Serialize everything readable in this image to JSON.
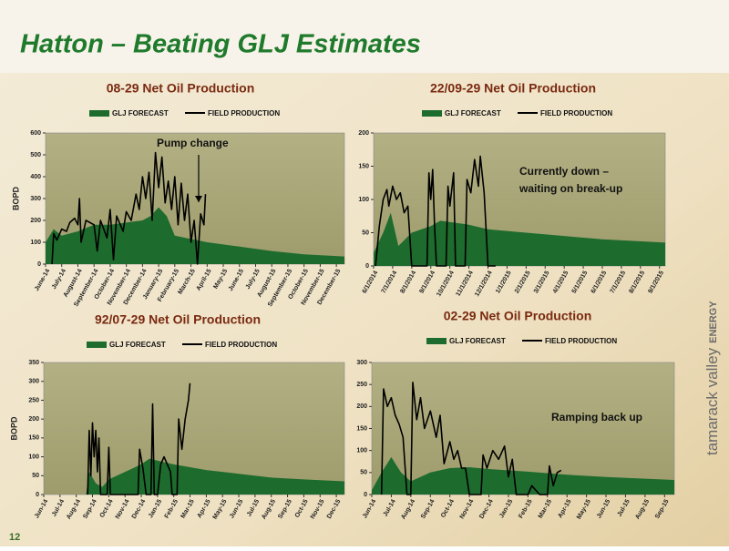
{
  "header": {
    "title": "Hatton – Beating GLJ Estimates"
  },
  "page_number": "12",
  "brand": [
    "tamarack valley",
    "ENERGY"
  ],
  "chart_data": [
    {
      "type": "combo",
      "title": "08-29 Net Oil Production",
      "ylabel": "BOPD",
      "annotation": [
        "Pump change"
      ],
      "ylim": [
        0,
        600
      ],
      "yticks": [
        0,
        100,
        200,
        300,
        400,
        500,
        600
      ],
      "xlim": [
        0,
        18.5
      ],
      "xticks": [
        {
          "value": 0,
          "label": "June-14"
        },
        {
          "value": 1,
          "label": "July-14"
        },
        {
          "value": 2,
          "label": "August-14"
        },
        {
          "value": 3,
          "label": "September-14"
        },
        {
          "value": 4,
          "label": "October-14"
        },
        {
          "value": 5,
          "label": "November-14"
        },
        {
          "value": 6,
          "label": "December-14"
        },
        {
          "value": 7,
          "label": "January-15"
        },
        {
          "value": 8,
          "label": "February-15"
        },
        {
          "value": 9,
          "label": "March-15"
        },
        {
          "value": 10,
          "label": "April-15"
        },
        {
          "value": 11,
          "label": "May-15"
        },
        {
          "value": 12,
          "label": "June-15"
        },
        {
          "value": 13,
          "label": "July-15"
        },
        {
          "value": 14,
          "label": "August-15"
        },
        {
          "value": 15,
          "label": "September-15"
        },
        {
          "value": 16,
          "label": "October-15"
        },
        {
          "value": 17,
          "label": "November-15"
        },
        {
          "value": 18,
          "label": "December-15"
        }
      ],
      "series": [
        {
          "name": "GLJ FORECAST",
          "type": "area",
          "color": "#1e6b2e",
          "x": [
            0,
            0.5,
            1,
            2,
            3,
            4,
            5,
            6,
            6.5,
            7,
            7.5,
            8,
            9,
            10,
            12,
            14,
            16,
            18.5
          ],
          "values": [
            100,
            160,
            130,
            150,
            180,
            180,
            190,
            200,
            220,
            260,
            220,
            130,
            115,
            100,
            80,
            60,
            45,
            35
          ]
        },
        {
          "name": "FIELD PRODUCTION",
          "type": "line",
          "color": "#000000",
          "x": [
            0.4,
            0.5,
            0.7,
            1,
            1.3,
            1.5,
            1.8,
            2,
            2.1,
            2.2,
            2.5,
            3,
            3.2,
            3.4,
            3.8,
            4,
            4.2,
            4.4,
            4.8,
            5,
            5.3,
            5.6,
            5.8,
            6,
            6.2,
            6.4,
            6.6,
            6.8,
            7,
            7.2,
            7.4,
            7.6,
            7.8,
            8,
            8.2,
            8.4,
            8.6,
            8.8,
            9,
            9.2,
            9.4,
            9.6,
            9.8,
            9.9
          ],
          "values": [
            0,
            140,
            110,
            160,
            150,
            190,
            210,
            180,
            300,
            100,
            200,
            180,
            60,
            200,
            120,
            250,
            20,
            220,
            150,
            240,
            200,
            320,
            250,
            400,
            300,
            420,
            200,
            510,
            350,
            490,
            280,
            380,
            250,
            400,
            180,
            370,
            200,
            320,
            100,
            200,
            0,
            230,
            180,
            320
          ]
        }
      ]
    },
    {
      "type": "combo",
      "title": "22/09-29 Net Oil Production",
      "annotation": [
        "Currently down –",
        "waiting on break-up"
      ],
      "ylim": [
        0,
        200
      ],
      "yticks": [
        0,
        50,
        100,
        150,
        200
      ],
      "xlim": [
        0,
        15.3
      ],
      "xticks": [
        {
          "value": 0,
          "label": "6/1/2014"
        },
        {
          "value": 1,
          "label": "7/1/2014"
        },
        {
          "value": 2,
          "label": "8/1/2014"
        },
        {
          "value": 3,
          "label": "9/1/2014"
        },
        {
          "value": 4,
          "label": "10/1/2014"
        },
        {
          "value": 5,
          "label": "11/1/2014"
        },
        {
          "value": 6,
          "label": "12/1/2014"
        },
        {
          "value": 7,
          "label": "1/1/2015"
        },
        {
          "value": 8,
          "label": "2/1/2015"
        },
        {
          "value": 9,
          "label": "3/1/2015"
        },
        {
          "value": 10,
          "label": "4/1/2015"
        },
        {
          "value": 11,
          "label": "5/1/2015"
        },
        {
          "value": 12,
          "label": "6/1/2015"
        },
        {
          "value": 13,
          "label": "7/1/2015"
        },
        {
          "value": 14,
          "label": "8/1/2015"
        },
        {
          "value": 15,
          "label": "9/1/2015"
        }
      ],
      "series": [
        {
          "name": "GLJ FORECAST",
          "type": "area",
          "color": "#1e6b2e",
          "x": [
            0,
            0.5,
            0.9,
            1.3,
            2,
            3,
            3.5,
            5,
            6,
            8,
            10,
            12,
            15.3
          ],
          "values": [
            20,
            50,
            80,
            30,
            50,
            60,
            68,
            62,
            55,
            50,
            45,
            40,
            35
          ]
        },
        {
          "name": "FIELD PRODUCTION",
          "type": "line",
          "color": "#000000",
          "x": [
            0.1,
            0.3,
            0.5,
            0.7,
            0.8,
            1,
            1.2,
            1.4,
            1.6,
            1.8,
            2,
            2.8,
            2.9,
            3,
            3.1,
            3.2,
            3.3,
            3.8,
            3.9,
            4,
            4.2,
            4.3,
            4.8,
            4.9,
            5.1,
            5.3,
            5.5,
            5.6,
            5.8,
            6,
            6.4
          ],
          "values": [
            0,
            60,
            100,
            115,
            90,
            120,
            100,
            110,
            80,
            90,
            0,
            0,
            140,
            100,
            145,
            60,
            0,
            0,
            120,
            90,
            140,
            0,
            0,
            130,
            110,
            160,
            120,
            165,
            110,
            0,
            0
          ]
        }
      ]
    },
    {
      "type": "combo",
      "title": "92/07-29 Net Oil Production",
      "ylabel": "BOPD",
      "ylim": [
        0,
        350
      ],
      "yticks": [
        0,
        50,
        100,
        150,
        200,
        250,
        300,
        350
      ],
      "xlim": [
        0,
        18.5
      ],
      "xticks": [
        {
          "value": 0,
          "label": "Jun-14"
        },
        {
          "value": 1,
          "label": "Jul-14"
        },
        {
          "value": 2,
          "label": "Aug-14"
        },
        {
          "value": 3,
          "label": "Sep-14"
        },
        {
          "value": 4,
          "label": "Oct-14"
        },
        {
          "value": 5,
          "label": "Nov-14"
        },
        {
          "value": 6,
          "label": "Dec-14"
        },
        {
          "value": 7,
          "label": "Jan-15"
        },
        {
          "value": 8,
          "label": "Feb-15"
        },
        {
          "value": 9,
          "label": "Mar-15"
        },
        {
          "value": 10,
          "label": "Apr-15"
        },
        {
          "value": 11,
          "label": "May-15"
        },
        {
          "value": 12,
          "label": "Jun-15"
        },
        {
          "value": 13,
          "label": "Jul-15"
        },
        {
          "value": 14,
          "label": "Aug-15"
        },
        {
          "value": 15,
          "label": "Sep-15"
        },
        {
          "value": 16,
          "label": "Oct-15"
        },
        {
          "value": 17,
          "label": "Nov-15"
        },
        {
          "value": 18,
          "label": "Dec-15"
        }
      ],
      "series": [
        {
          "name": "GLJ FORECAST",
          "type": "area",
          "color": "#1e6b2e",
          "x": [
            0,
            2.6,
            2.8,
            3.2,
            3.6,
            4,
            5,
            6,
            6.5,
            7,
            8,
            10,
            12,
            14,
            16,
            18.5
          ],
          "values": [
            0,
            0,
            60,
            30,
            20,
            40,
            60,
            80,
            95,
            90,
            80,
            65,
            55,
            45,
            40,
            35
          ]
        },
        {
          "name": "FIELD PRODUCTION",
          "type": "line",
          "color": "#000000",
          "x": [
            2.7,
            2.8,
            2.9,
            3,
            3.1,
            3.2,
            3.3,
            3.4,
            3.5,
            3.9,
            4,
            4.1,
            5.8,
            5.9,
            6.1,
            6.3,
            6.6,
            6.7,
            6.8,
            7,
            7.2,
            7.4,
            7.6,
            7.8,
            7.9,
            8.2,
            8.3,
            8.5,
            8.7,
            8.9,
            9
          ],
          "values": [
            0,
            170,
            50,
            190,
            100,
            170,
            60,
            150,
            0,
            0,
            125,
            0,
            0,
            120,
            70,
            0,
            0,
            240,
            0,
            0,
            80,
            100,
            80,
            60,
            0,
            0,
            200,
            120,
            200,
            250,
            295
          ]
        }
      ]
    },
    {
      "type": "combo",
      "title": "02-29 Net Oil Production",
      "annotation": [
        "Ramping back up"
      ],
      "ylim": [
        0,
        300
      ],
      "yticks": [
        0,
        50,
        100,
        150,
        200,
        250,
        300
      ],
      "xlim": [
        0,
        15.5
      ],
      "xticks": [
        {
          "value": 0,
          "label": "Jun-14"
        },
        {
          "value": 1,
          "label": "Jul-14"
        },
        {
          "value": 2,
          "label": "Aug-14"
        },
        {
          "value": 3,
          "label": "Sep-14"
        },
        {
          "value": 4,
          "label": "Oct-14"
        },
        {
          "value": 5,
          "label": "Nov-14"
        },
        {
          "value": 6,
          "label": "Dec-14"
        },
        {
          "value": 7,
          "label": "Jan-15"
        },
        {
          "value": 8,
          "label": "Feb-15"
        },
        {
          "value": 9,
          "label": "Mar-15"
        },
        {
          "value": 10,
          "label": "Apr-15"
        },
        {
          "value": 11,
          "label": "May-15"
        },
        {
          "value": 12,
          "label": "Jun-15"
        },
        {
          "value": 13,
          "label": "Jul-15"
        },
        {
          "value": 14,
          "label": "Aug-15"
        },
        {
          "value": 15,
          "label": "Sep-15"
        }
      ],
      "series": [
        {
          "name": "GLJ FORECAST",
          "type": "area",
          "color": "#1e6b2e",
          "x": [
            0,
            0.5,
            1,
            1.5,
            2,
            3,
            4,
            5,
            6,
            8,
            10,
            12,
            15.5
          ],
          "values": [
            10,
            50,
            85,
            50,
            30,
            50,
            60,
            62,
            58,
            52,
            45,
            40,
            33
          ]
        },
        {
          "name": "FIELD PRODUCTION",
          "type": "line",
          "color": "#000000",
          "x": [
            0.5,
            0.6,
            0.8,
            1,
            1.2,
            1.4,
            1.6,
            1.8,
            2,
            2.1,
            2.3,
            2.5,
            2.7,
            3,
            3.3,
            3.5,
            3.7,
            4,
            4.2,
            4.4,
            4.6,
            4.8,
            5,
            5.6,
            5.7,
            5.9,
            6.2,
            6.5,
            6.8,
            7,
            7.2,
            7.4,
            8,
            8.2,
            8.6,
            9,
            9.1,
            9.3,
            9.5,
            9.7
          ],
          "values": [
            0,
            240,
            200,
            220,
            180,
            160,
            130,
            0,
            0,
            255,
            170,
            220,
            150,
            190,
            130,
            180,
            70,
            120,
            80,
            100,
            60,
            60,
            0,
            0,
            90,
            60,
            100,
            80,
            110,
            40,
            80,
            0,
            0,
            20,
            0,
            0,
            65,
            20,
            50,
            55
          ]
        }
      ]
    }
  ]
}
